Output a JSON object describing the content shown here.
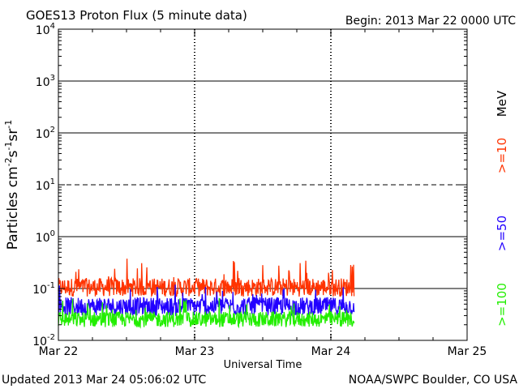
{
  "chart_data": {
    "type": "line",
    "title": "GOES13 Proton Flux (5 minute data)",
    "begin_label": "Begin: 2013 Mar 22 0000 UTC",
    "xlabel": "Universal Time",
    "ylabel_parts": {
      "base": "Particles cm",
      "exp1": "-2",
      "s": "s",
      "exp2": "-1",
      "sr": "sr",
      "exp3": "-1"
    },
    "x_unit": "days since 2013-03-22 00:00 UTC",
    "xlim": [
      0,
      3
    ],
    "x_ticks": [
      {
        "value": 0,
        "label": "Mar 22"
      },
      {
        "value": 1,
        "label": "Mar 23"
      },
      {
        "value": 2,
        "label": "Mar 24"
      },
      {
        "value": 3,
        "label": "Mar 25"
      }
    ],
    "yscale": "log",
    "ylim": [
      0.01,
      10000
    ],
    "y_ticks": [
      {
        "value": 10000,
        "mantissa": "10",
        "exp": "4"
      },
      {
        "value": 1000,
        "mantissa": "10",
        "exp": "3"
      },
      {
        "value": 100,
        "mantissa": "10",
        "exp": "2"
      },
      {
        "value": 10,
        "mantissa": "10",
        "exp": "1"
      },
      {
        "value": 1,
        "mantissa": "10",
        "exp": "0"
      },
      {
        "value": 0.1,
        "mantissa": "10",
        "exp": "-1"
      },
      {
        "value": 0.01,
        "mantissa": "10",
        "exp": "-2"
      }
    ],
    "threshold_lines": [
      {
        "value": 1000,
        "style": "solid"
      },
      {
        "value": 100,
        "style": "solid"
      },
      {
        "value": 10,
        "style": "dashed"
      },
      {
        "value": 1,
        "style": "solid"
      },
      {
        "value": 0.1,
        "style": "solid"
      }
    ],
    "day_markers": [
      1,
      2
    ],
    "data_end_x": 2.17,
    "series": [
      {
        "name": ">=10",
        "color": "#ff3300",
        "typical": 0.1,
        "min": 0.07,
        "max": 0.38
      },
      {
        "name": ">=50",
        "color": "#2200ff",
        "typical": 0.05,
        "min": 0.03,
        "max": 0.12
      },
      {
        "name": ">=100",
        "color": "#22ee00",
        "typical": 0.025,
        "min": 0.018,
        "max": 0.07
      }
    ],
    "legend": {
      "unit_label": "MeV",
      "unit_color": "#000000",
      "placement": "right",
      "entries": [
        ">=10",
        ">=50",
        ">=100"
      ]
    }
  },
  "footer": {
    "updated": "Updated 2013 Mar 24 05:06:02 UTC",
    "source": "NOAA/SWPC Boulder, CO USA"
  }
}
